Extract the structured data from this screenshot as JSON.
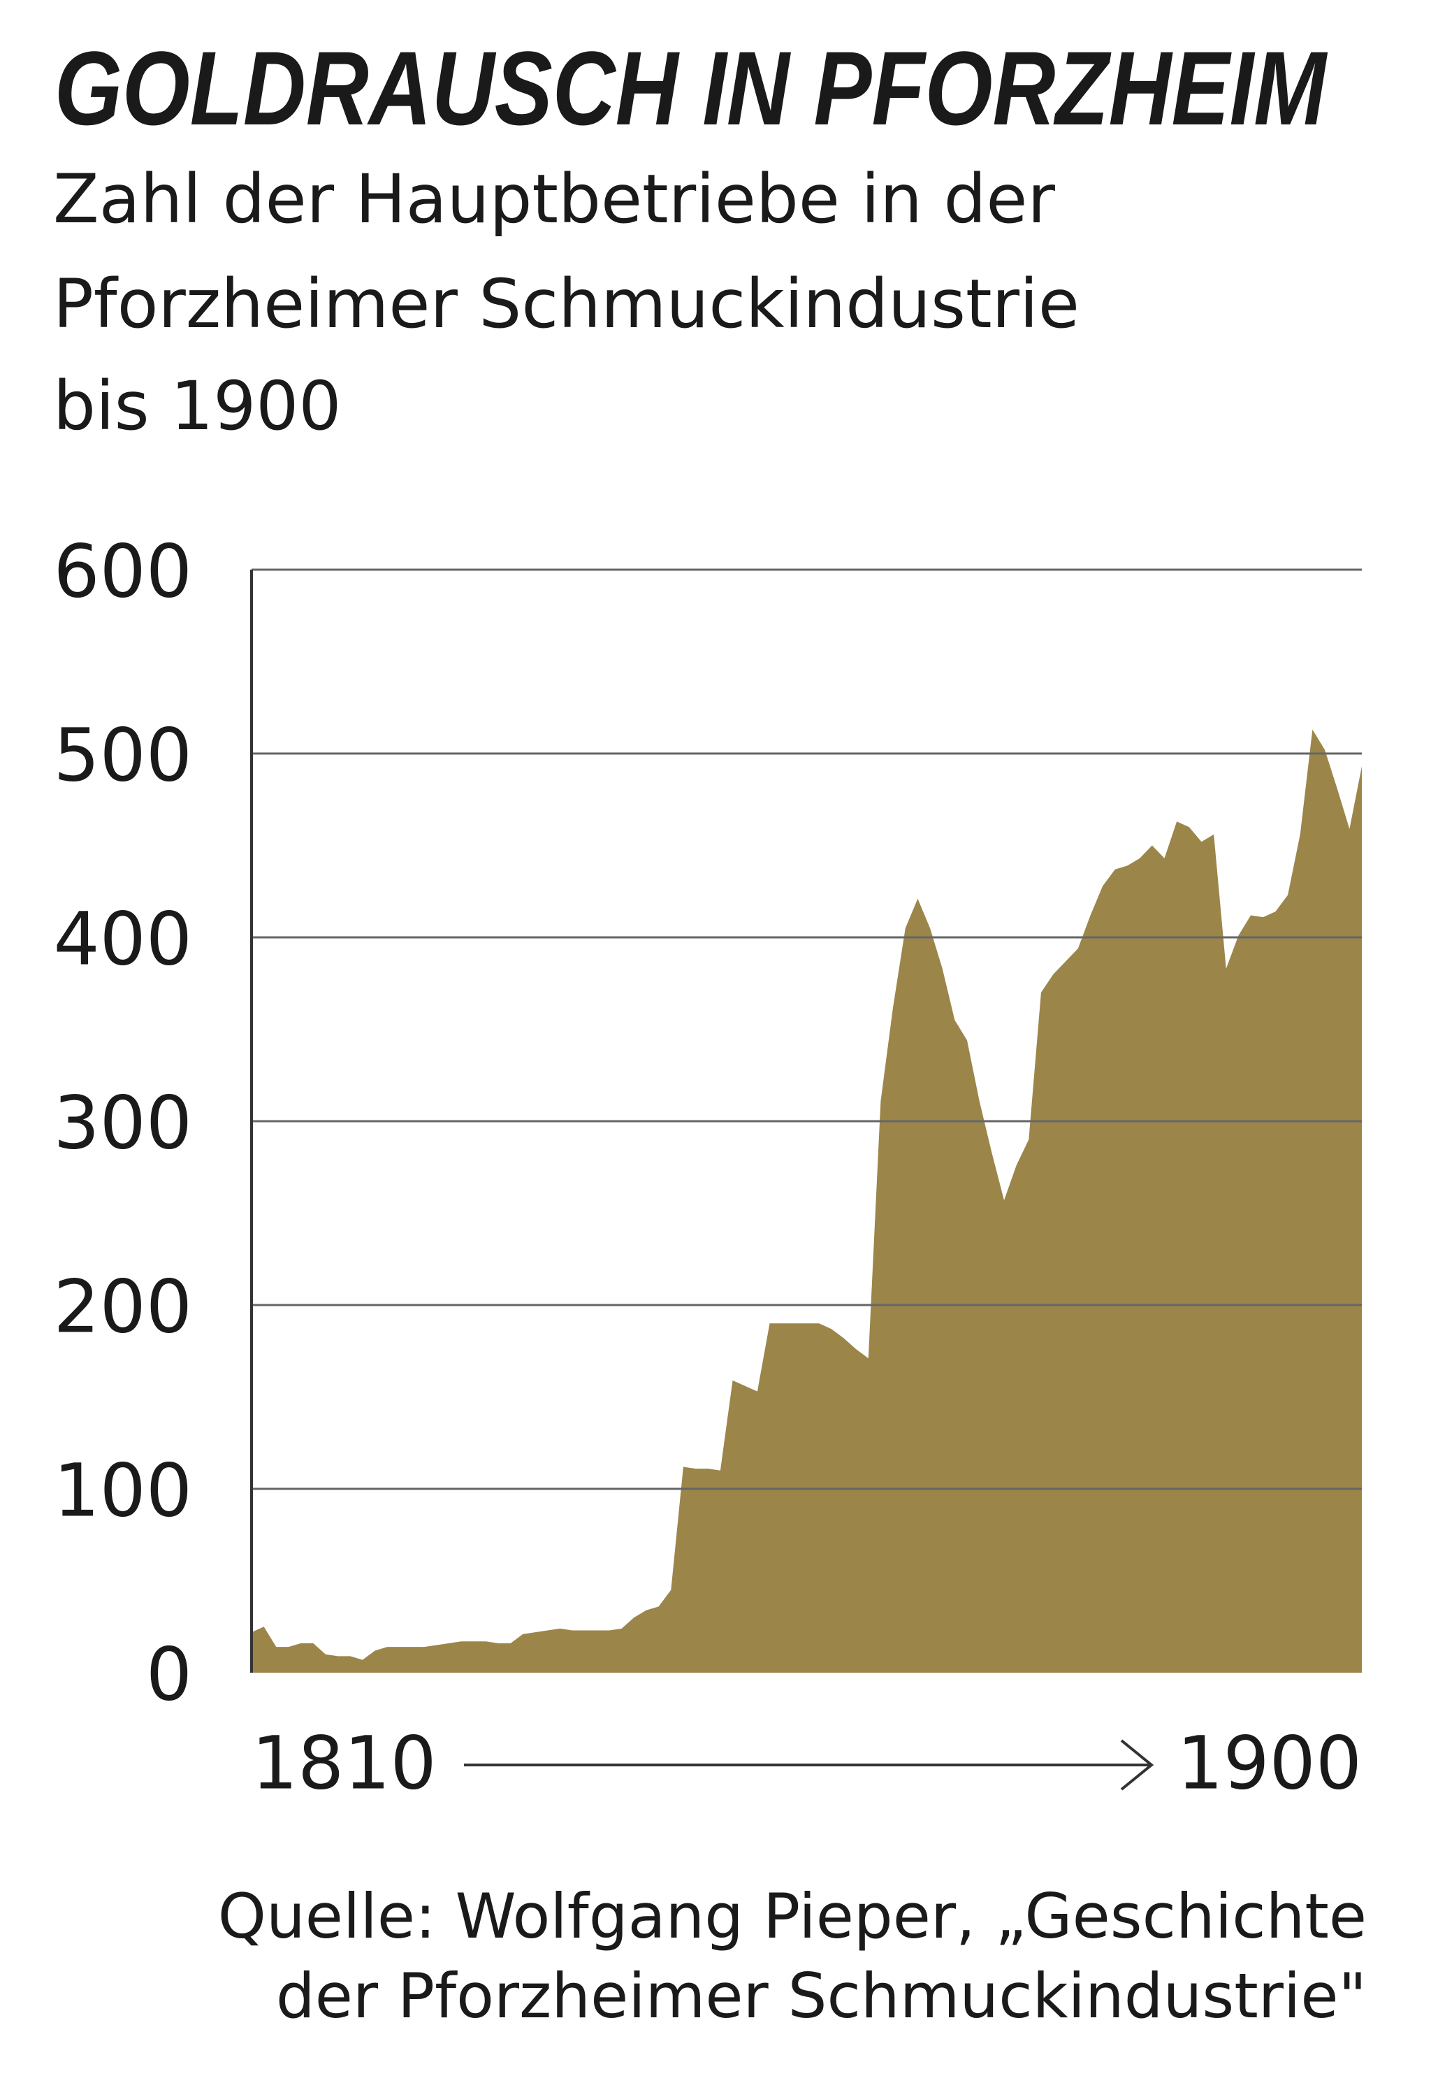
{
  "chart_data": {
    "type": "area",
    "title": "GOLDRAUSCH IN PFORZHEIM",
    "subtitle": [
      "Zahl der Hauptbetriebe in der",
      "Pforzheimer Schmuckindustrie",
      "bis 1900"
    ],
    "source": [
      "Quelle: Wolfgang Pieper, „Geschichte",
      "der Pforzheimer Schmuckindustrie\""
    ],
    "x": [
      1810,
      1811,
      1812,
      1813,
      1814,
      1815,
      1816,
      1817,
      1818,
      1819,
      1820,
      1821,
      1822,
      1823,
      1824,
      1825,
      1826,
      1827,
      1828,
      1829,
      1830,
      1831,
      1832,
      1833,
      1834,
      1835,
      1836,
      1837,
      1838,
      1839,
      1840,
      1841,
      1842,
      1843,
      1844,
      1845,
      1846,
      1847,
      1848,
      1849,
      1850,
      1851,
      1852,
      1853,
      1854,
      1855,
      1856,
      1857,
      1858,
      1859,
      1860,
      1861,
      1862,
      1863,
      1864,
      1865,
      1866,
      1867,
      1868,
      1869,
      1870,
      1871,
      1872,
      1873,
      1874,
      1875,
      1876,
      1877,
      1878,
      1879,
      1880,
      1881,
      1882,
      1883,
      1884,
      1885,
      1886,
      1887,
      1888,
      1889,
      1890,
      1891,
      1892,
      1893,
      1894,
      1895,
      1896,
      1897,
      1898,
      1899,
      1900
    ],
    "values": [
      22,
      25,
      14,
      14,
      16,
      16,
      10,
      9,
      9,
      7,
      12,
      14,
      14,
      14,
      14,
      15,
      16,
      17,
      17,
      17,
      16,
      16,
      21,
      22,
      23,
      24,
      23,
      23,
      23,
      23,
      24,
      30,
      34,
      36,
      45,
      112,
      111,
      111,
      110,
      159,
      156,
      153,
      190,
      190,
      190,
      190,
      190,
      187,
      182,
      176,
      171,
      311,
      362,
      405,
      421,
      405,
      383,
      355,
      344,
      311,
      283,
      257,
      276,
      290,
      370,
      380,
      387,
      394,
      412,
      428,
      437,
      439,
      443,
      450,
      443,
      463,
      460,
      452,
      456,
      383,
      401,
      412,
      411,
      414,
      423,
      456,
      513,
      502,
      481,
      459,
      493
    ],
    "color": "#9b8549",
    "xlim": [
      1810,
      1900
    ],
    "xticks": [
      1810,
      1900
    ],
    "ylim": [
      0,
      600
    ],
    "yticks": [
      0,
      100,
      200,
      300,
      400,
      500,
      600
    ],
    "grid": true
  }
}
